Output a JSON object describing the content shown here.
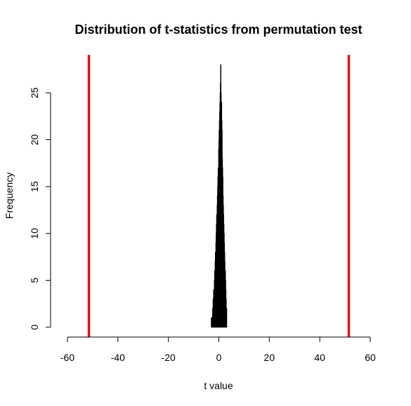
{
  "chart_data": {
    "type": "histogram",
    "title": "Distribution of t-statistics from permutation test",
    "xlabel": "t value",
    "ylabel": "Frequency",
    "xlim": [
      -60,
      60
    ],
    "ylim": [
      0,
      28
    ],
    "x_ticks": [
      -60,
      -40,
      -20,
      0,
      20,
      40,
      60
    ],
    "y_ticks": [
      0,
      5,
      10,
      15,
      20,
      25
    ],
    "bin_width": 0.1,
    "bin_start": -3.0,
    "counts": [
      1,
      0,
      1,
      1,
      1,
      2,
      2,
      3,
      2,
      4,
      3,
      4,
      5,
      6,
      5,
      7,
      8,
      7,
      9,
      10,
      11,
      12,
      11,
      13,
      14,
      15,
      16,
      17,
      16,
      19,
      20,
      21,
      22,
      23,
      24,
      25,
      26,
      28,
      25,
      24,
      24,
      22,
      21,
      18,
      17,
      16,
      14,
      13,
      12,
      11,
      10,
      9,
      8,
      7,
      6,
      6,
      5,
      4,
      3,
      2,
      2
    ],
    "reference_lines": [
      {
        "x": -51.5,
        "color": "#e8120e"
      },
      {
        "x": 51.5,
        "color": "#e8120e"
      }
    ],
    "grid": false,
    "legend": "none"
  }
}
